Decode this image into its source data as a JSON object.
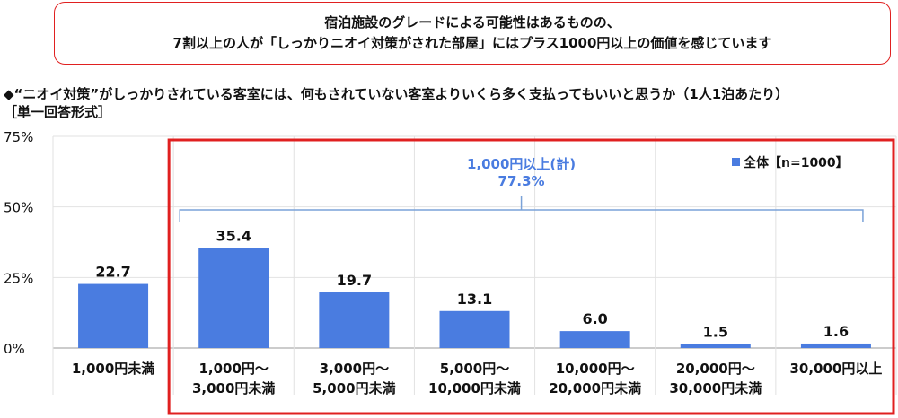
{
  "headline": {
    "line1": "宿泊施設のグレードによる可能性はあるものの、",
    "line2": "7割以上の人が「しっかりニオイ対策がされた部屋」にはプラス1000円以上の価値を感じています"
  },
  "question": "◆“ニオイ対策”がしっかりされている客室には、何もされていない客室よりいくら多く支払ってもいいと思うか（1人1泊あたり）",
  "answer_format": "［単一回答形式］",
  "colors": {
    "bar": "#4a7ce0",
    "highlight": "#e02020",
    "bracket": "#7aa2d8",
    "total_text": "#4a7ce0"
  },
  "chart_data": {
    "type": "bar",
    "categories": [
      [
        "1,000円未満"
      ],
      [
        "1,000円～",
        "3,000円未満"
      ],
      [
        "3,000円～",
        "5,000円未満"
      ],
      [
        "5,000円～",
        "10,000円未満"
      ],
      [
        "10,000円～",
        "20,000円未満"
      ],
      [
        "20,000円～",
        "30,000円未満"
      ],
      [
        "30,000円以上"
      ]
    ],
    "series": [
      {
        "name": "全体【n=1000】",
        "values": [
          22.7,
          35.4,
          19.7,
          13.1,
          6.0,
          1.5,
          1.6
        ]
      }
    ],
    "value_labels": [
      "22.7",
      "35.4",
      "19.7",
      "13.1",
      "6.0",
      "1.5",
      "1.6"
    ],
    "ylim": [
      0,
      75
    ],
    "yticks": [
      0,
      25,
      50,
      75
    ],
    "ytick_labels": [
      "0%",
      "25%",
      "50%",
      "75%"
    ],
    "grid": true,
    "legend": "top-right",
    "total_annotation": {
      "label": "1,000円以上(計)",
      "value": "77.3%",
      "from_category": 1,
      "to_category": 6
    }
  }
}
